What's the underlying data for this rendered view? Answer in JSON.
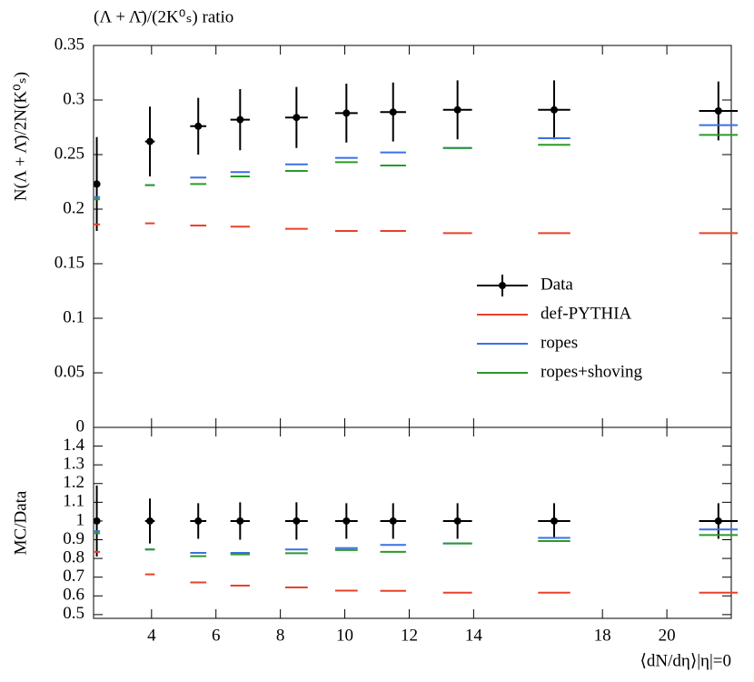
{
  "chart_data": [
    {
      "type": "errorbar",
      "title": "(Λ + Λ̄)/(2K⁰ₛ) ratio",
      "ylabel": "N(Λ + Λ̄)/2N(K⁰ₛ)",
      "x": [
        2.3,
        3.95,
        5.45,
        6.75,
        8.5,
        10.05,
        11.5,
        13.5,
        16.5,
        21.6
      ],
      "xerr": [
        0.1,
        0.15,
        0.25,
        0.3,
        0.35,
        0.35,
        0.4,
        0.45,
        0.5,
        0.6
      ],
      "xlim": [
        2.2,
        22
      ],
      "ylim": [
        0,
        0.35
      ],
      "yticks": [
        0,
        0.05,
        0.1,
        0.15,
        0.2,
        0.25,
        0.3,
        0.35
      ],
      "legend": "lower right",
      "series": [
        {
          "name": "Data",
          "color": "#000000",
          "values": [
            0.223,
            0.262,
            0.276,
            0.282,
            0.284,
            0.288,
            0.289,
            0.291,
            0.291,
            0.29
          ],
          "errors": [
            0.043,
            0.032,
            0.026,
            0.028,
            0.028,
            0.027,
            0.027,
            0.027,
            0.027,
            0.027
          ]
        },
        {
          "name": "def-PYTHIA",
          "color": "#e8412a",
          "values": [
            0.186,
            0.187,
            0.185,
            0.184,
            0.182,
            0.18,
            0.18,
            0.178,
            0.178,
            0.178
          ]
        },
        {
          "name": "ropes",
          "color": "#3a6fe8",
          "values": [
            0.211,
            0.222,
            0.229,
            0.234,
            0.241,
            0.247,
            0.252,
            0.256,
            0.265,
            0.277
          ]
        },
        {
          "name": "ropes+shoving",
          "color": "#2a9a2a",
          "values": [
            0.209,
            0.222,
            0.223,
            0.23,
            0.235,
            0.243,
            0.24,
            0.256,
            0.259,
            0.268
          ]
        }
      ]
    },
    {
      "type": "errorbar",
      "ylabel": "MC/Data",
      "xlabel": "⟨dN/dη⟩|η|=0",
      "x": [
        2.3,
        3.95,
        5.45,
        6.75,
        8.5,
        10.05,
        11.5,
        13.5,
        16.5,
        21.6
      ],
      "xerr": [
        0.1,
        0.15,
        0.25,
        0.3,
        0.35,
        0.35,
        0.4,
        0.45,
        0.5,
        0.6
      ],
      "xlim": [
        2.2,
        22
      ],
      "xticks": [
        4,
        6,
        8,
        10,
        12,
        14,
        18,
        20
      ],
      "ylim": [
        0.48,
        1.5
      ],
      "yticks": [
        0.5,
        0.6,
        0.7,
        0.8,
        0.9,
        1,
        1.1,
        1.2,
        1.3,
        1.4
      ],
      "series": [
        {
          "color": "#000000",
          "values": [
            1,
            1,
            1,
            1,
            1,
            1,
            1,
            1,
            1,
            1
          ],
          "errors": [
            0.19,
            0.12,
            0.095,
            0.1,
            0.1,
            0.095,
            0.095,
            0.095,
            0.095,
            0.095
          ]
        },
        {
          "color": "#e8412a",
          "values": [
            0.835,
            0.715,
            0.672,
            0.655,
            0.645,
            0.628,
            0.627,
            0.617,
            0.617,
            0.617
          ]
        },
        {
          "color": "#3a6fe8",
          "values": [
            0.945,
            0.848,
            0.83,
            0.83,
            0.848,
            0.855,
            0.872,
            0.88,
            0.91,
            0.955
          ]
        },
        {
          "color": "#2a9a2a",
          "values": [
            0.935,
            0.848,
            0.812,
            0.822,
            0.828,
            0.845,
            0.835,
            0.88,
            0.893,
            0.925
          ]
        }
      ]
    }
  ]
}
